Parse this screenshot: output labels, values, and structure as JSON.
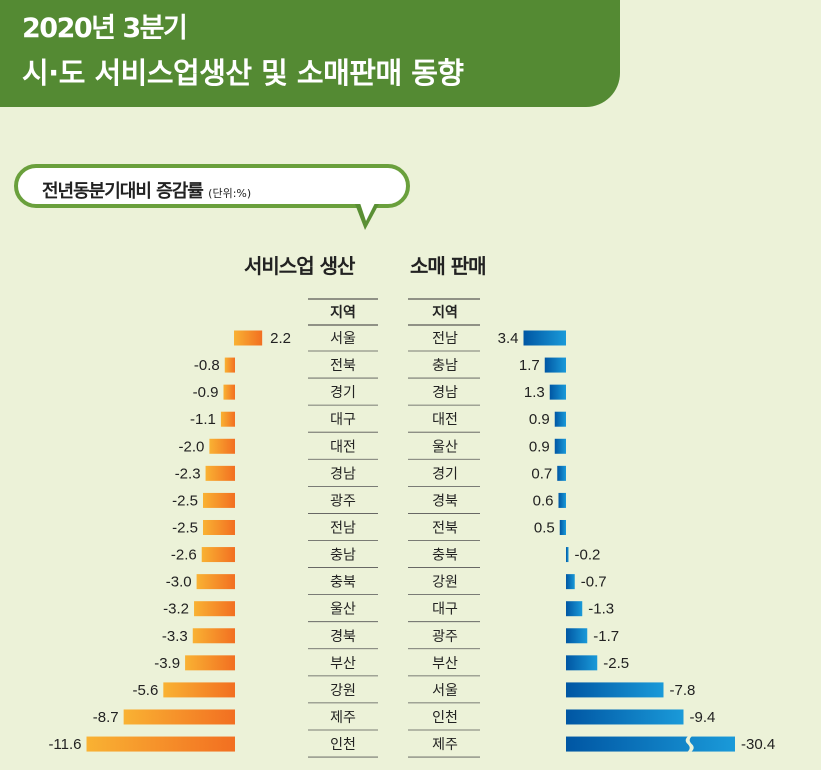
{
  "header": {
    "line1": "2020년 3분기",
    "line2": "시·도 서비스업생산 및 소매판매 동향"
  },
  "bubble": {
    "text": "전년동분기대비 증감률",
    "unit": "(단위:%)"
  },
  "colors": {
    "header": "#548a33",
    "orange_light": "#f9b233",
    "orange_dark": "#f26f21",
    "blue_dark": "#0056a3",
    "blue_light": "#1a9ad9"
  },
  "chart_data": [
    {
      "type": "bar",
      "orientation": "horizontal",
      "title": "서비스업 생산",
      "column_header": "지역",
      "categories": [
        "서울",
        "전북",
        "경기",
        "대구",
        "대전",
        "경남",
        "광주",
        "전남",
        "충남",
        "충북",
        "울산",
        "경북",
        "부산",
        "강원",
        "제주",
        "인천"
      ],
      "values": [
        2.2,
        -0.8,
        -0.9,
        -1.1,
        -2.0,
        -2.3,
        -2.5,
        -2.5,
        -2.6,
        -3.0,
        -3.2,
        -3.3,
        -3.9,
        -5.6,
        -8.7,
        -11.6
      ],
      "labels": [
        "2.2",
        "-0.8",
        "-0.9",
        "-1.1",
        "-2.0",
        "-2.3",
        "-2.5",
        "-2.5",
        "-2.6",
        "-3.0",
        "-3.2",
        "-3.3",
        "-3.9",
        "-5.6",
        "-8.7",
        "-11.6"
      ]
    },
    {
      "type": "bar",
      "orientation": "horizontal",
      "title": "소매 판매",
      "column_header": "지역",
      "categories": [
        "전남",
        "충남",
        "경남",
        "대전",
        "울산",
        "경기",
        "경북",
        "전북",
        "충북",
        "강원",
        "대구",
        "광주",
        "부산",
        "서울",
        "인천",
        "제주"
      ],
      "values": [
        3.4,
        1.7,
        1.3,
        0.9,
        0.9,
        0.7,
        0.6,
        0.5,
        -0.2,
        -0.7,
        -1.3,
        -1.7,
        -2.5,
        -7.8,
        -9.4,
        -30.4
      ],
      "labels": [
        "3.4",
        "1.7",
        "1.3",
        "0.9",
        "0.9",
        "0.7",
        "0.6",
        "0.5",
        "-0.2",
        "-0.7",
        "-1.3",
        "-1.7",
        "-2.5",
        "-7.8",
        "-9.4",
        "-30.4"
      ],
      "broken_axis_bar": "제주"
    }
  ]
}
